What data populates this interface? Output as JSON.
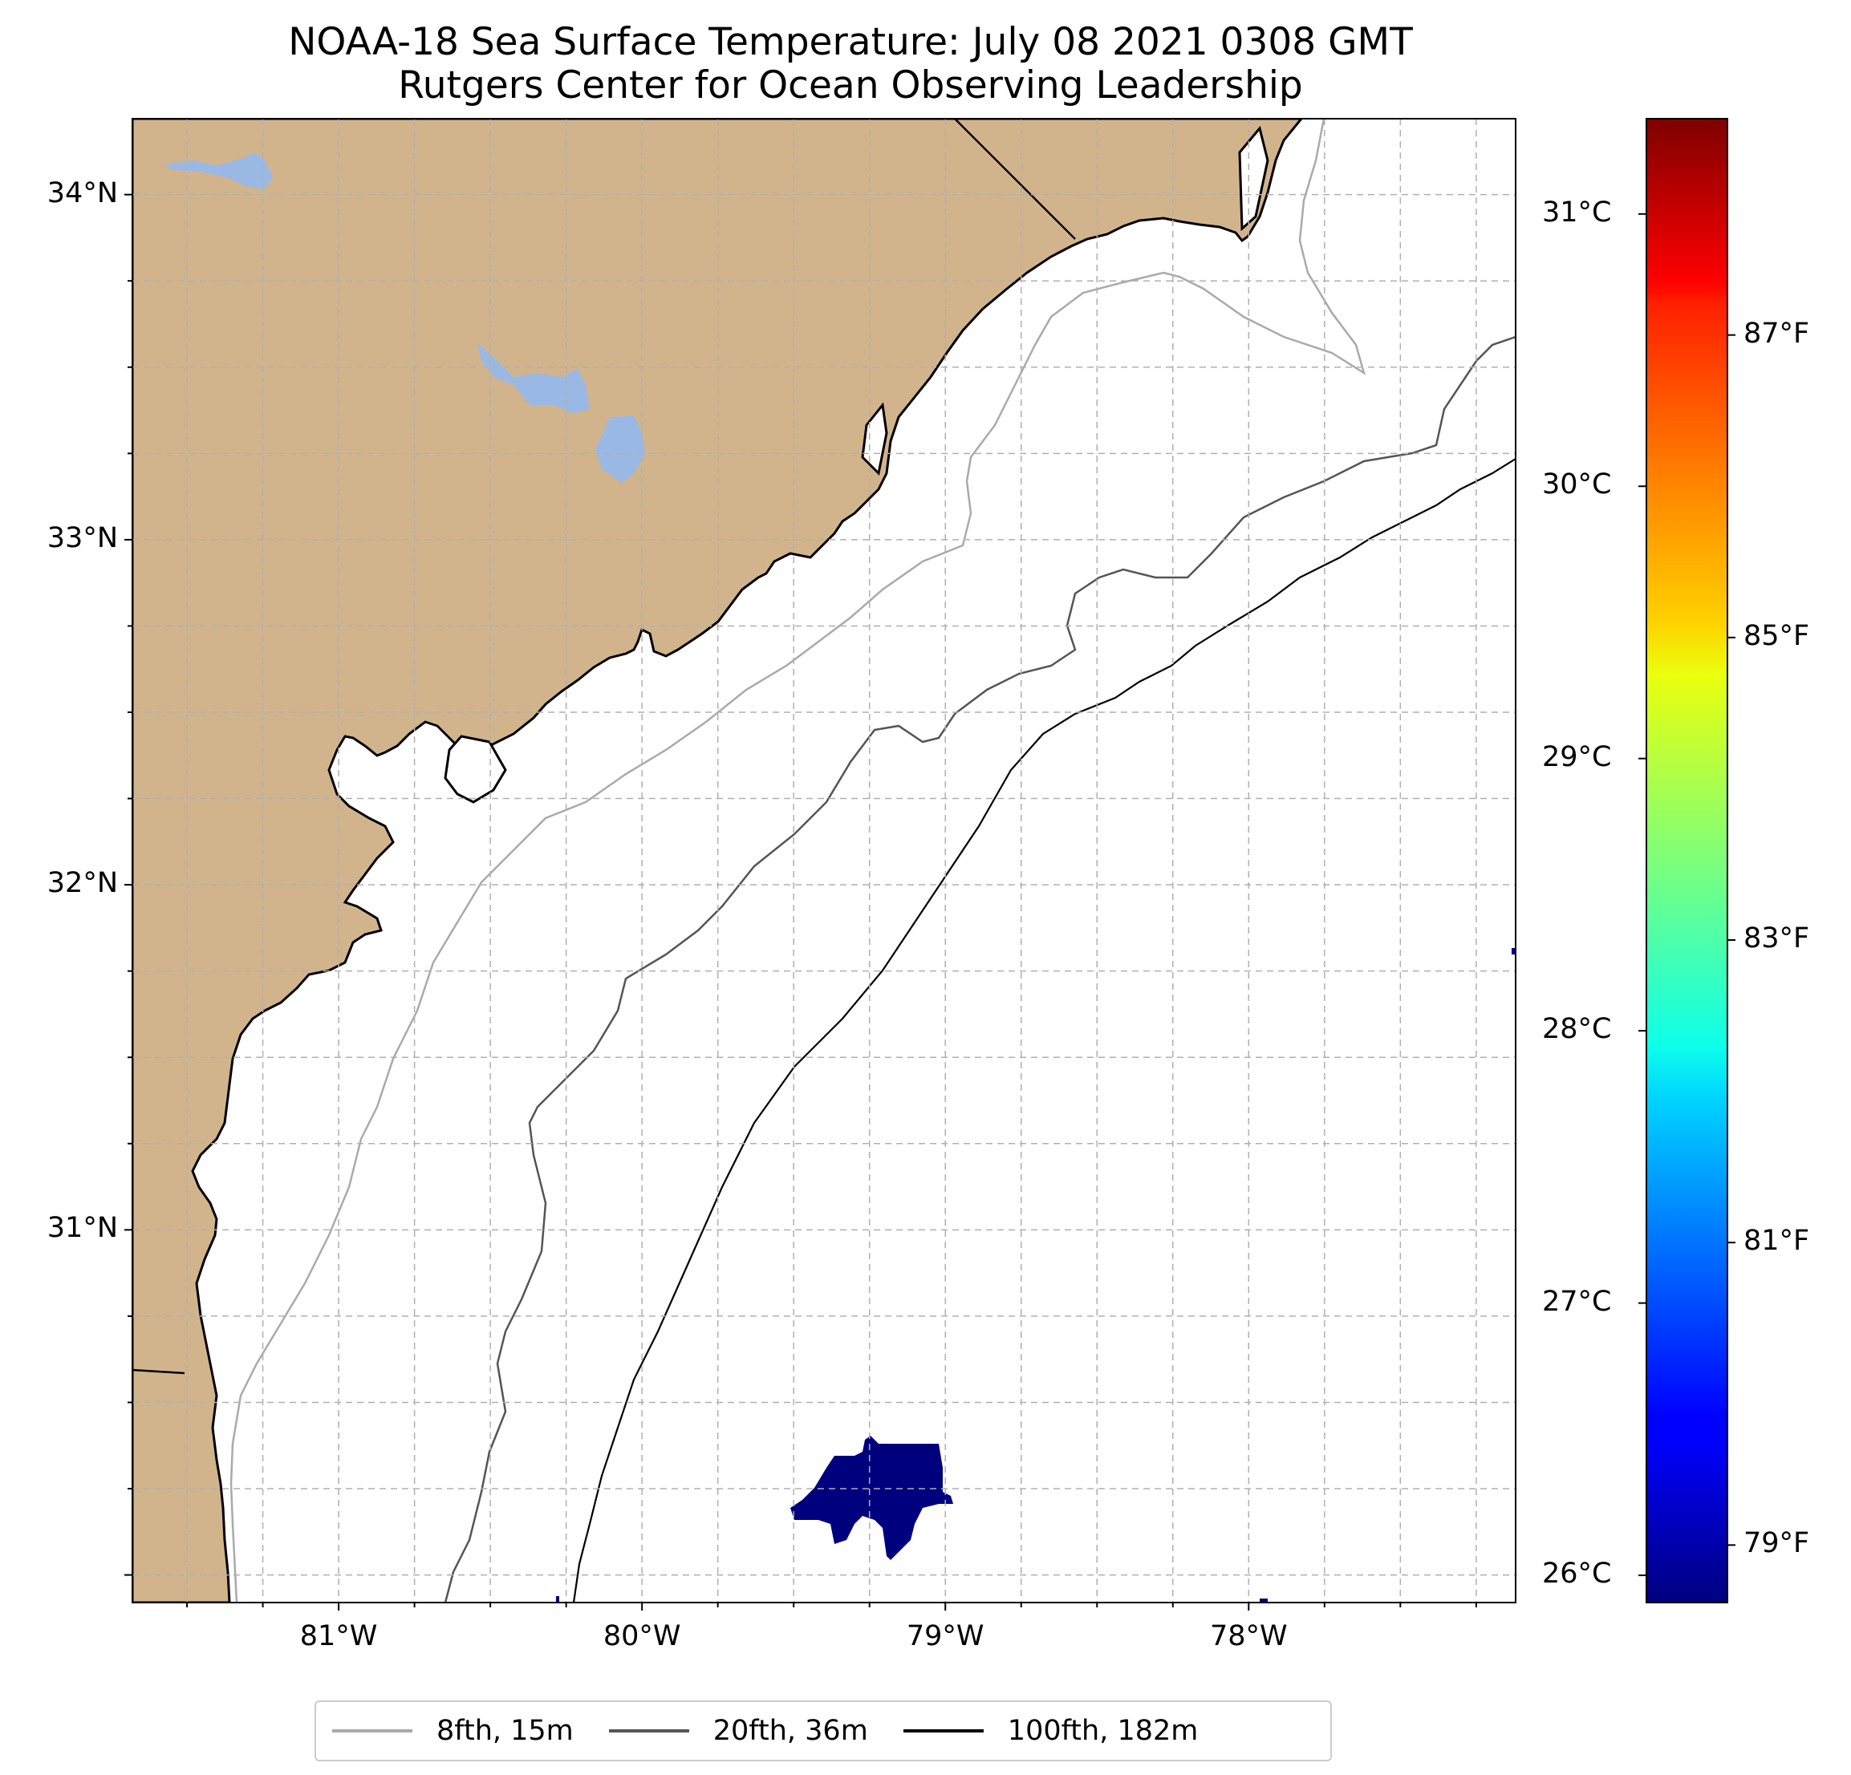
{
  "title": {
    "line1": "NOAA-18 Sea Surface Temperature: July 08 2021 0308 GMT",
    "line2": "Rutgers Center for Ocean Observing Leadership"
  },
  "map": {
    "lon_range": [
      -81.68,
      -77.12
    ],
    "lat_range": [
      29.92,
      34.22
    ],
    "land_color": "#d2b48c",
    "lake_color": "#9ab8e4",
    "ocean_color": "#ffffff",
    "grid": true,
    "lat_ticks": [
      {
        "value": 34,
        "label": "34°N"
      },
      {
        "value": 33,
        "label": "33°N"
      },
      {
        "value": 32,
        "label": "32°N"
      },
      {
        "value": 31,
        "label": "31°N"
      }
    ],
    "lon_ticks": [
      {
        "value": -81,
        "label": "81°W"
      },
      {
        "value": -80,
        "label": "80°W"
      },
      {
        "value": -79,
        "label": "79°W"
      },
      {
        "value": -78,
        "label": "78°W"
      }
    ],
    "sst_patch": {
      "color": "#00007f",
      "approx_temp_c": 26.0,
      "center_lon": -79.3,
      "center_lat": 30.27
    }
  },
  "colorbar": {
    "colormap": "jet",
    "range_c": [
      25.9,
      31.35
    ],
    "celsius_ticks": [
      {
        "value": 31,
        "label": "31°C"
      },
      {
        "value": 30,
        "label": "30°C"
      },
      {
        "value": 29,
        "label": "29°C"
      },
      {
        "value": 28,
        "label": "28°C"
      },
      {
        "value": 27,
        "label": "27°C"
      },
      {
        "value": 26,
        "label": "26°C"
      }
    ],
    "fahrenheit_ticks": [
      {
        "value": 87,
        "label": "87°F"
      },
      {
        "value": 85,
        "label": "85°F"
      },
      {
        "value": 83,
        "label": "83°F"
      },
      {
        "value": 81,
        "label": "81°F"
      },
      {
        "value": 79,
        "label": "79°F"
      }
    ]
  },
  "legend": {
    "items": [
      {
        "label": "8fth, 15m",
        "color": "#aaaaaa"
      },
      {
        "label": "20fth, 36m",
        "color": "#555555"
      },
      {
        "label": "100fth, 182m",
        "color": "#000000"
      }
    ]
  }
}
